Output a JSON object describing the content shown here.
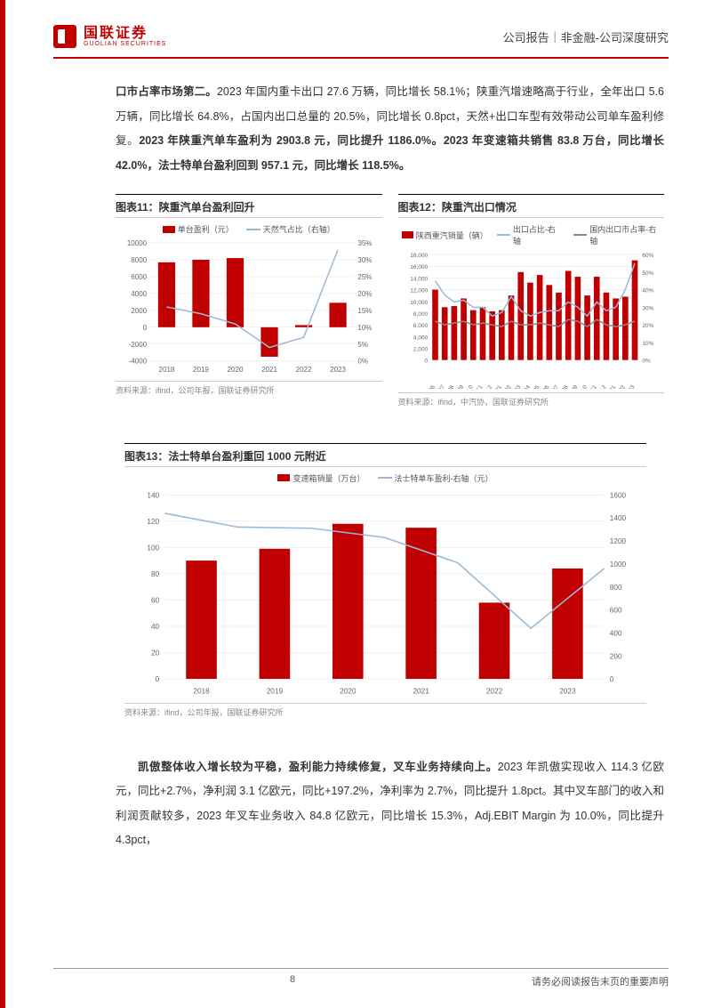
{
  "header": {
    "logo_cn": "国联证券",
    "logo_en": "GUOLIAN SECURITIES",
    "right": "公司报告｜非金融-公司深度研究"
  },
  "para1_parts": [
    {
      "t": "口市占率市场第二。",
      "b": true
    },
    {
      "t": "2023 年国内重卡出口 27.6 万辆，同比增长 58.1%；陕重汽增速略高于行业，全年出口 5.6 万辆，同比增长 64.8%，占国内出口总量的 20.5%，同比增长 0.8pct，天然+出口车型有效带动公司单车盈利修复。",
      "b": false
    },
    {
      "t": "2023 年陕重汽单车盈利为 2903.8 元，同比提升 1186.0%。2023 年变速箱共销售 83.8 万台，同比增长 42.0%，法士特单台盈利回到 957.1 元，同比增长 118.5%。",
      "b": true
    }
  ],
  "chart11": {
    "title": "图表11：陕重汽单台盈利回升",
    "legend": [
      {
        "label": "单台盈利（元）",
        "type": "bar",
        "color": "#c00000"
      },
      {
        "label": "天然气占比（右轴）",
        "type": "line",
        "color": "#9cb8d8"
      }
    ],
    "years": [
      "2018",
      "2019",
      "2020",
      "2021",
      "2022",
      "2023"
    ],
    "bars": [
      7700,
      8000,
      8200,
      -3500,
      250,
      2900
    ],
    "line_pct": [
      16,
      14,
      11,
      4,
      7,
      33
    ],
    "y1_ticks": [
      -4000,
      -2000,
      0,
      2000,
      4000,
      6000,
      8000,
      10000
    ],
    "y2_ticks": [
      0,
      5,
      10,
      15,
      20,
      25,
      30,
      35
    ],
    "y1_min": -4000,
    "y1_max": 10000,
    "y2_min": 0,
    "y2_max": 35,
    "bg": "#ffffff",
    "source": "资料来源：ifind，公司年报，国联证券研究所"
  },
  "chart12": {
    "title": "图表12：陕重汽出口情况",
    "legend": [
      {
        "label": "陕西重汽销量（辆）",
        "type": "bar",
        "color": "#c00000"
      },
      {
        "label": "出口占比-右轴",
        "type": "line",
        "color": "#9cb8d8"
      },
      {
        "label": "国内出口市占率-右轴",
        "type": "line",
        "color": "#888888"
      }
    ],
    "x_labels": [
      "2022-06",
      "2022-07",
      "2022-08",
      "2022-09",
      "2022-10",
      "2022-11",
      "2022-12",
      "2023-01",
      "2023-02",
      "2023-03",
      "2023-04",
      "2023-05",
      "2023-06",
      "2023-07",
      "2023-08",
      "2023-09",
      "2023-10",
      "2023-11",
      "2023-12",
      "2024-01",
      "2024-02",
      "2024-03"
    ],
    "bars": [
      12000,
      9000,
      9200,
      10500,
      8500,
      9000,
      8300,
      8500,
      11000,
      15000,
      13200,
      14500,
      12800,
      11500,
      15200,
      14200,
      11000,
      14200,
      11500,
      10500,
      10800,
      17000
    ],
    "line1_pct": [
      45,
      37,
      33,
      34,
      30,
      30,
      25,
      27,
      36,
      28,
      25,
      27,
      28,
      28,
      33,
      30,
      25,
      33,
      28,
      30,
      40,
      55
    ],
    "line2_pct": [
      22,
      20,
      21,
      22,
      20,
      21,
      20,
      19,
      22,
      20,
      20,
      21,
      20,
      19,
      23,
      22,
      19,
      23,
      20,
      19,
      20,
      22
    ],
    "y1_ticks": [
      0,
      2000,
      4000,
      6000,
      8000,
      10000,
      12000,
      14000,
      16000,
      18000
    ],
    "y2_ticks": [
      0,
      10,
      20,
      30,
      40,
      50,
      60
    ],
    "y1_min": 0,
    "y1_max": 18000,
    "y2_min": 0,
    "y2_max": 60,
    "source": "资料来源：ifind，中汽协，国联证券研究所"
  },
  "chart13": {
    "title": "图表13：法士特单台盈利重回 1000 元附近",
    "legend": [
      {
        "label": "变速箱销量（万台）",
        "type": "bar",
        "color": "#c00000"
      },
      {
        "label": "法士特单车盈利-右轴（元）",
        "type": "line",
        "color": "#9cb8d8"
      }
    ],
    "years": [
      "2018",
      "2019",
      "2020",
      "2021",
      "2022",
      "2023"
    ],
    "bars": [
      90,
      99,
      118,
      115,
      58,
      84
    ],
    "line": [
      1440,
      1320,
      1310,
      1230,
      1010,
      440,
      960
    ],
    "line_x_offset": true,
    "y1_ticks": [
      0,
      20,
      40,
      60,
      80,
      100,
      120,
      140
    ],
    "y2_ticks": [
      0,
      200,
      400,
      600,
      800,
      1000,
      1200,
      1400,
      1600
    ],
    "y1_min": 0,
    "y1_max": 140,
    "y2_min": 0,
    "y2_max": 1600,
    "source": "资料来源：ifind，公司年报，国联证券研究所"
  },
  "para2_parts": [
    {
      "t": "凯傲整体收入增长较为平稳，盈利能力持续修复，叉车业务持续向上。",
      "b": true
    },
    {
      "t": "2023 年凯傲实现收入 114.3 亿欧元，同比+2.7%，净利润 3.1 亿欧元，同比+197.2%，净利率为 2.7%，同比提升 1.8pct。其中叉车部门的收入和利润贡献较多，2023 年叉车业务收入 84.8 亿欧元，同比增长 15.3%，Adj.EBIT Margin 为 10.0%，同比提升 4.3pct，",
      "b": false
    }
  ],
  "footer": {
    "page": "8",
    "disclaimer": "请务必阅读报告末页的重要声明"
  }
}
